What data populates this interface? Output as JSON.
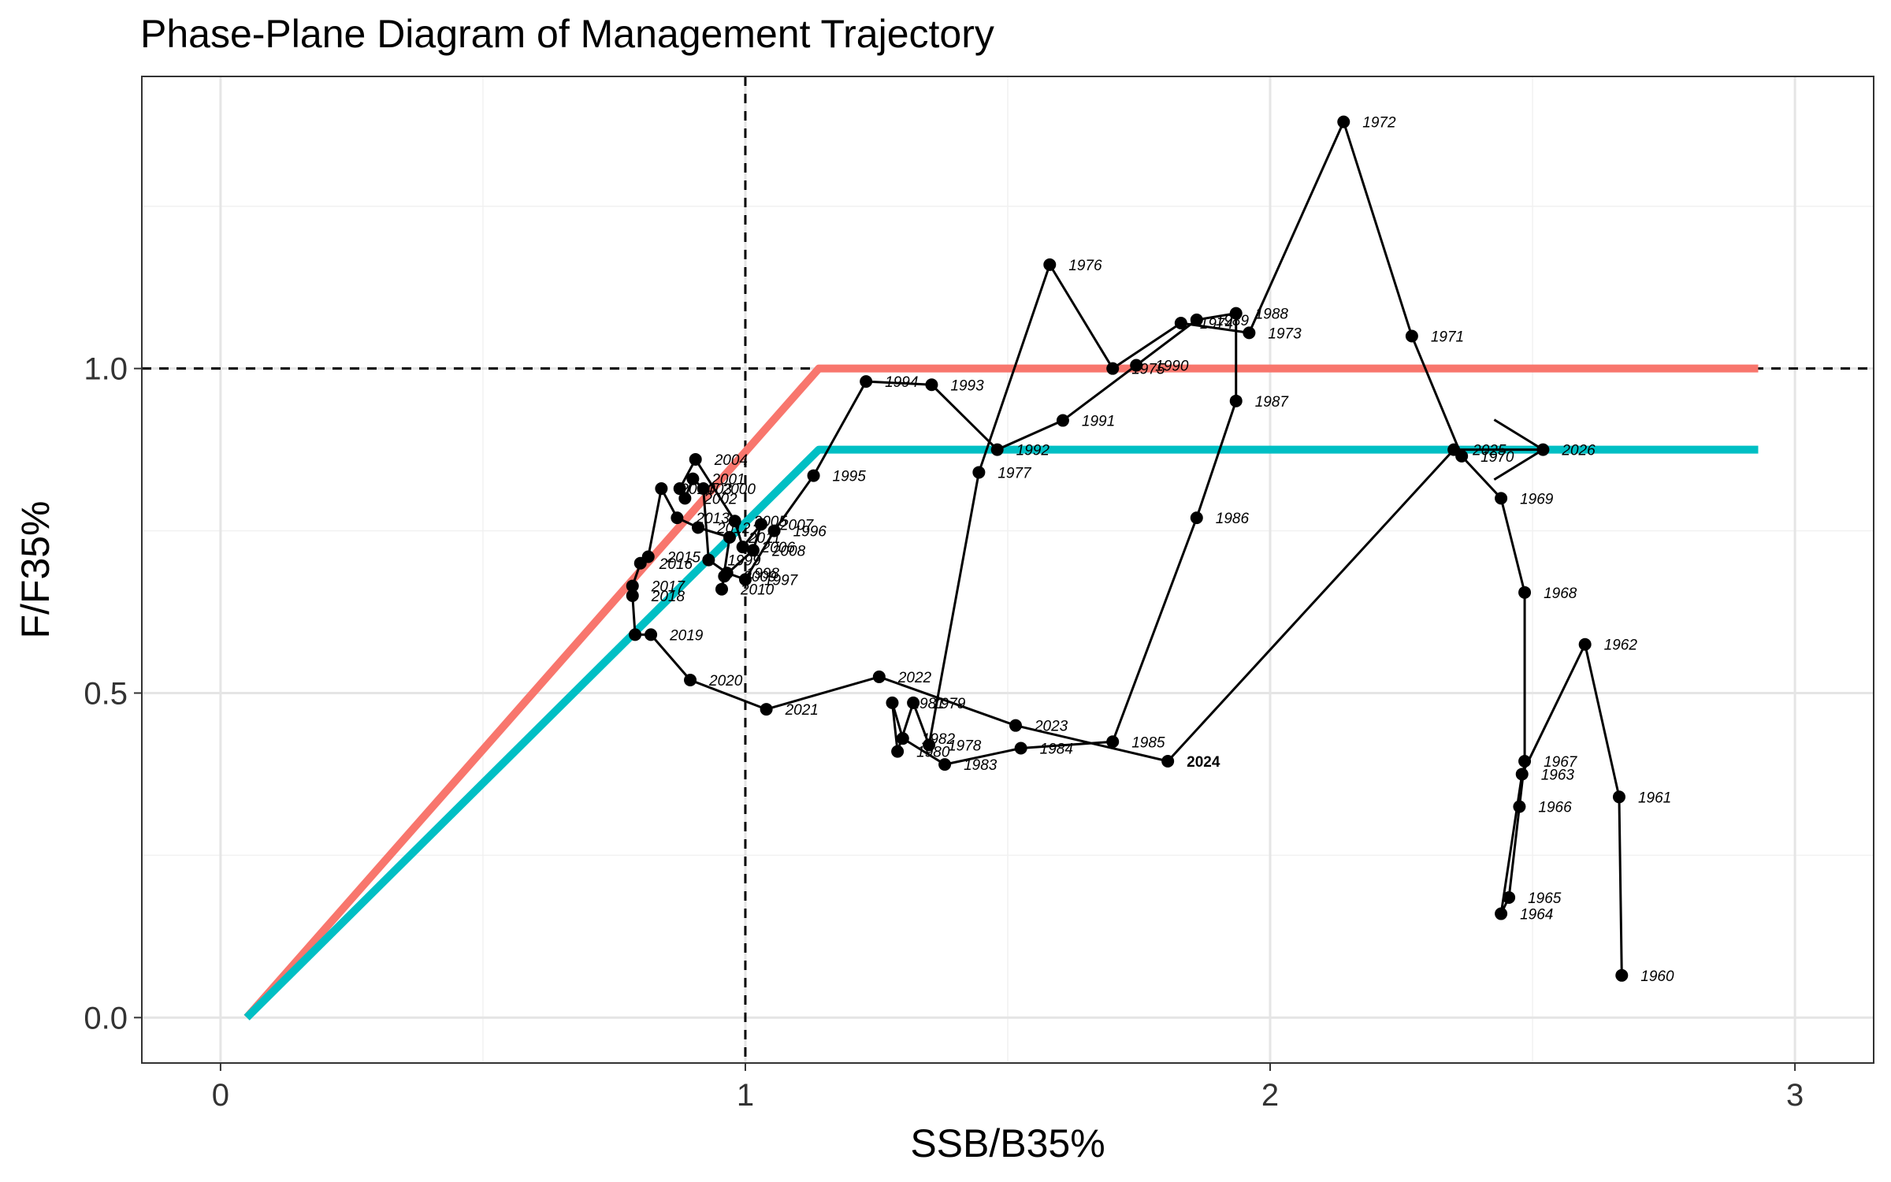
{
  "chart_data": {
    "type": "scatter",
    "title": "Phase-Plane Diagram of Management Trajectory",
    "xlabel": "SSB/B35%",
    "ylabel": "F/F35%",
    "xlim": [
      -0.15,
      3.15
    ],
    "ylim": [
      -0.07,
      1.45
    ],
    "x_ticks": [
      0,
      1,
      2,
      3
    ],
    "x_tick_labels": [
      "0",
      "1",
      "2",
      "3"
    ],
    "y_ticks": [
      0.0,
      0.5,
      1.0
    ],
    "y_tick_labels": [
      "0.0",
      "0.5",
      "1.0"
    ],
    "grid": true,
    "legend": "none",
    "reference_lines": [
      {
        "orientation": "vertical",
        "value": 1.0,
        "style": "dashed"
      },
      {
        "orientation": "horizontal",
        "value": 1.0,
        "style": "dashed"
      }
    ],
    "control_rules": [
      {
        "color": "#F8766D",
        "points": [
          [
            0.05,
            0.0
          ],
          [
            1.14,
            1.0
          ],
          [
            2.93,
            1.0
          ]
        ]
      },
      {
        "color": "#00BFC4",
        "points": [
          [
            0.05,
            0.0
          ],
          [
            1.14,
            0.875
          ],
          [
            2.93,
            0.875
          ]
        ]
      }
    ],
    "trajectory": [
      {
        "year": "1960",
        "x": 2.67,
        "y": 0.065
      },
      {
        "year": "1961",
        "x": 2.665,
        "y": 0.34
      },
      {
        "year": "1962",
        "x": 2.6,
        "y": 0.575
      },
      {
        "year": "1963",
        "x": 2.48,
        "y": 0.375
      },
      {
        "year": "1964",
        "x": 2.44,
        "y": 0.16
      },
      {
        "year": "1965",
        "x": 2.455,
        "y": 0.185
      },
      {
        "year": "1966",
        "x": 2.475,
        "y": 0.325
      },
      {
        "year": "1967",
        "x": 2.485,
        "y": 0.395
      },
      {
        "year": "1968",
        "x": 2.485,
        "y": 0.655
      },
      {
        "year": "1969",
        "x": 2.44,
        "y": 0.8
      },
      {
        "year": "1970",
        "x": 2.365,
        "y": 0.865
      },
      {
        "year": "1971",
        "x": 2.27,
        "y": 1.05
      },
      {
        "year": "1972",
        "x": 2.14,
        "y": 1.38
      },
      {
        "year": "1973",
        "x": 1.96,
        "y": 1.055
      },
      {
        "year": "1974",
        "x": 1.83,
        "y": 1.07
      },
      {
        "year": "1975",
        "x": 1.7,
        "y": 1.0
      },
      {
        "year": "1976",
        "x": 1.58,
        "y": 1.16
      },
      {
        "year": "1977",
        "x": 1.445,
        "y": 0.84
      },
      {
        "year": "1978",
        "x": 1.35,
        "y": 0.42
      },
      {
        "year": "1979",
        "x": 1.32,
        "y": 0.485
      },
      {
        "year": "1980",
        "x": 1.29,
        "y": 0.41
      },
      {
        "year": "1981",
        "x": 1.28,
        "y": 0.485
      },
      {
        "year": "1982",
        "x": 1.3,
        "y": 0.43
      },
      {
        "year": "1983",
        "x": 1.38,
        "y": 0.39
      },
      {
        "year": "1984",
        "x": 1.525,
        "y": 0.415
      },
      {
        "year": "1985",
        "x": 1.7,
        "y": 0.425
      },
      {
        "year": "1986",
        "x": 1.86,
        "y": 0.77
      },
      {
        "year": "1987",
        "x": 1.935,
        "y": 0.95
      },
      {
        "year": "1988",
        "x": 1.935,
        "y": 1.085
      },
      {
        "year": "1989",
        "x": 1.86,
        "y": 1.075
      },
      {
        "year": "1990",
        "x": 1.745,
        "y": 1.005
      },
      {
        "year": "1991",
        "x": 1.605,
        "y": 0.92
      },
      {
        "year": "1992",
        "x": 1.48,
        "y": 0.875
      },
      {
        "year": "1993",
        "x": 1.355,
        "y": 0.975
      },
      {
        "year": "1994",
        "x": 1.23,
        "y": 0.98
      },
      {
        "year": "1995",
        "x": 1.13,
        "y": 0.835
      },
      {
        "year": "1996",
        "x": 1.055,
        "y": 0.75
      },
      {
        "year": "1997",
        "x": 1.0,
        "y": 0.675
      },
      {
        "year": "1998",
        "x": 0.965,
        "y": 0.685
      },
      {
        "year": "1999",
        "x": 0.93,
        "y": 0.705
      },
      {
        "year": "2000",
        "x": 0.92,
        "y": 0.815
      },
      {
        "year": "2001",
        "x": 0.9,
        "y": 0.83
      },
      {
        "year": "2002",
        "x": 0.885,
        "y": 0.8
      },
      {
        "year": "2003",
        "x": 0.875,
        "y": 0.815
      },
      {
        "year": "2004",
        "x": 0.905,
        "y": 0.86
      },
      {
        "year": "2005",
        "x": 0.98,
        "y": 0.765
      },
      {
        "year": "2006",
        "x": 0.995,
        "y": 0.725
      },
      {
        "year": "2007",
        "x": 1.03,
        "y": 0.76
      },
      {
        "year": "2008",
        "x": 1.015,
        "y": 0.72
      },
      {
        "year": "2009",
        "x": 0.96,
        "y": 0.68
      },
      {
        "year": "2010",
        "x": 0.955,
        "y": 0.66
      },
      {
        "year": "2011",
        "x": 0.97,
        "y": 0.74
      },
      {
        "year": "2012",
        "x": 0.91,
        "y": 0.755
      },
      {
        "year": "2013",
        "x": 0.87,
        "y": 0.77
      },
      {
        "year": "2014",
        "x": 0.84,
        "y": 0.815
      },
      {
        "year": "2015",
        "x": 0.815,
        "y": 0.71
      },
      {
        "year": "2016",
        "x": 0.8,
        "y": 0.7
      },
      {
        "year": "2017",
        "x": 0.785,
        "y": 0.665
      },
      {
        "year": "2018",
        "x": 0.785,
        "y": 0.65
      },
      {
        "year": "2019",
        "x": 0.82,
        "y": 0.59
      },
      {
        "year": "2020",
        "x": 0.895,
        "y": 0.52
      },
      {
        "year": "2021",
        "x": 1.04,
        "y": 0.475
      },
      {
        "year": "2022",
        "x": 1.255,
        "y": 0.525
      },
      {
        "year": "2023",
        "x": 1.515,
        "y": 0.45
      },
      {
        "year": "2024",
        "x": 1.805,
        "y": 0.395
      },
      {
        "year": "2025",
        "x": 2.35,
        "y": 0.875
      },
      {
        "year": "2026",
        "x": 2.52,
        "y": 0.875
      }
    ],
    "extra_trajectory_points": [
      [
        0.79,
        0.59
      ]
    ],
    "bold_years": [
      "2024"
    ],
    "point_color": "#000000",
    "line_color": "#000000"
  }
}
